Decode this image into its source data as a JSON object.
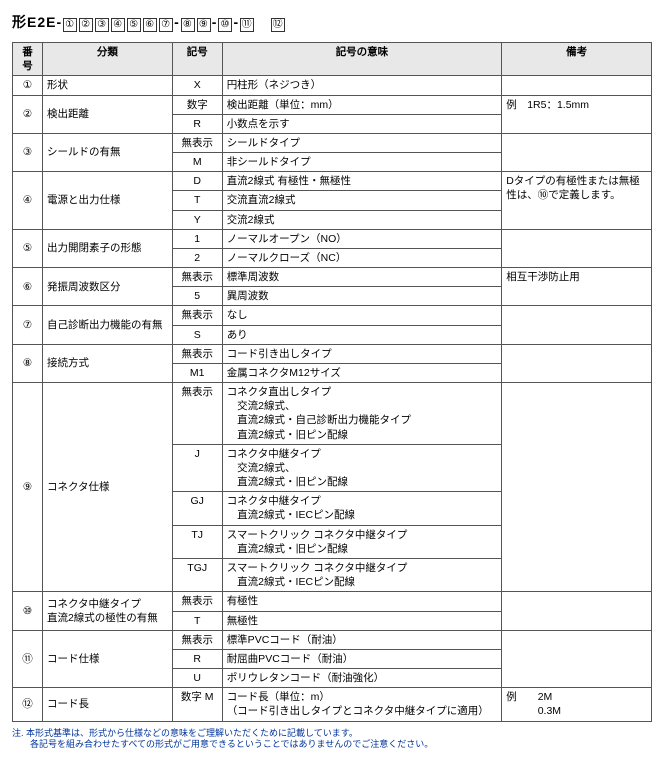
{
  "title_prefix": "形E2E-",
  "title_circles": [
    "①",
    "②",
    "③",
    "④",
    "⑤",
    "⑥",
    "⑦",
    "-",
    "⑧",
    "⑨",
    "-",
    "⑩",
    "-",
    "⑪",
    "　",
    "⑫"
  ],
  "headers": {
    "num": "番号",
    "cat": "分類",
    "sym": "記号",
    "mean": "記号の意味",
    "note": "備考"
  },
  "rows": [
    {
      "num": "①",
      "cat": "形状",
      "cells": [
        {
          "sym": "X",
          "mean": "円柱形（ネジつき）"
        }
      ],
      "note": ""
    },
    {
      "num": "②",
      "cat": "検出距離",
      "cells": [
        {
          "sym": "数字",
          "mean": "検出距離（単位：mm）"
        },
        {
          "sym": "R",
          "mean": "小数点を示す"
        }
      ],
      "note": "例　1R5：1.5mm"
    },
    {
      "num": "③",
      "cat": "シールドの有無",
      "cells": [
        {
          "sym": "無表示",
          "mean": "シールドタイプ"
        },
        {
          "sym": "M",
          "mean": "非シールドタイプ"
        }
      ],
      "note": ""
    },
    {
      "num": "④",
      "cat": "電源と出力仕様",
      "cells": [
        {
          "sym": "D",
          "mean": "直流2線式 有極性・無極性"
        },
        {
          "sym": "T",
          "mean": "交流直流2線式"
        },
        {
          "sym": "Y",
          "mean": "交流2線式"
        }
      ],
      "note": "Dタイプの有極性または無極性は、⑩で定義します。"
    },
    {
      "num": "⑤",
      "cat": "出力開閉素子の形態",
      "cells": [
        {
          "sym": "1",
          "mean": "ノーマルオープン（NO）"
        },
        {
          "sym": "2",
          "mean": "ノーマルクローズ（NC）"
        }
      ],
      "note": ""
    },
    {
      "num": "⑥",
      "cat": "発振周波数区分",
      "cells": [
        {
          "sym": "無表示",
          "mean": "標準周波数"
        },
        {
          "sym": "5",
          "mean": "異周波数"
        }
      ],
      "note": "相互干渉防止用"
    },
    {
      "num": "⑦",
      "cat": "自己診断出力機能の有無",
      "cells": [
        {
          "sym": "無表示",
          "mean": "なし"
        },
        {
          "sym": "S",
          "mean": "あり"
        }
      ],
      "note": ""
    },
    {
      "num": "⑧",
      "cat": "接続方式",
      "cells": [
        {
          "sym": "無表示",
          "mean": "コード引き出しタイプ"
        },
        {
          "sym": "M1",
          "mean": "金属コネクタM12サイズ"
        }
      ],
      "note": ""
    },
    {
      "num": "⑨",
      "cat": "コネクタ仕様",
      "cells": [
        {
          "sym": "無表示",
          "mean": "コネクタ直出しタイプ\n　交流2線式、\n　直流2線式・自己診断出力機能タイプ\n　直流2線式・旧ピン配線"
        },
        {
          "sym": "J",
          "mean": "コネクタ中継タイプ\n　交流2線式、\n　直流2線式・旧ピン配線"
        },
        {
          "sym": "GJ",
          "mean": "コネクタ中継タイプ\n　直流2線式・IECピン配線"
        },
        {
          "sym": "TJ",
          "mean": "スマートクリック コネクタ中継タイプ\n　直流2線式・旧ピン配線"
        },
        {
          "sym": "TGJ",
          "mean": "スマートクリック コネクタ中継タイプ\n　直流2線式・IECピン配線"
        }
      ],
      "note": ""
    },
    {
      "num": "⑩",
      "cat": "コネクタ中継タイプ\n直流2線式の極性の有無",
      "cells": [
        {
          "sym": "無表示",
          "mean": "有極性"
        },
        {
          "sym": "T",
          "mean": "無極性"
        }
      ],
      "note": ""
    },
    {
      "num": "⑪",
      "cat": "コード仕様",
      "cells": [
        {
          "sym": "無表示",
          "mean": "標準PVCコード（耐油）"
        },
        {
          "sym": "R",
          "mean": "耐屈曲PVCコード（耐油）"
        },
        {
          "sym": "U",
          "mean": "ポリウレタンコード（耐油強化）"
        }
      ],
      "note": ""
    },
    {
      "num": "⑫",
      "cat": "コード長",
      "cells": [
        {
          "sym": "数字 M",
          "mean": "コード長（単位：m）\n（コード引き出しタイプとコネクタ中継タイプに適用）"
        }
      ],
      "note": "例　　2M\n　　　0.3M"
    }
  ],
  "footnote": "注. 本形式基準は、形式から仕様などの意味をご理解いただくために記載しています。\n　　各記号を組み合わせたすべての形式がご用意できるということではありませんのでご注意ください。"
}
